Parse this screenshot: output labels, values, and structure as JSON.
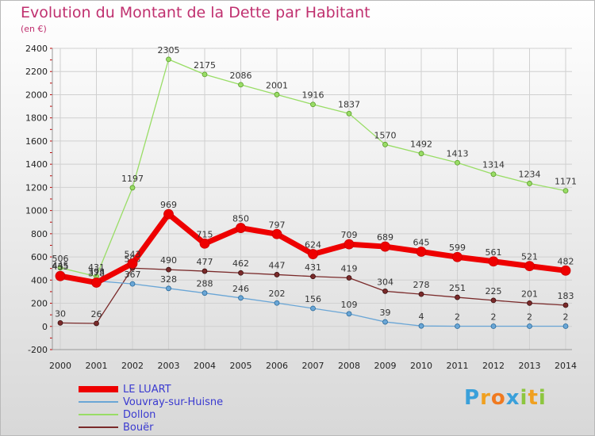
{
  "title": "Evolution du Montant de la Dette par Habitant",
  "subtitle": "(en €)",
  "brand": {
    "p": "P",
    "r": "r",
    "o": "o",
    "x": "x",
    "i1": "i",
    "t": "t",
    "i2": "i"
  },
  "chart_data": {
    "type": "line",
    "title": "Evolution du Montant de la Dette par Habitant",
    "subtitle": "(en €)",
    "xlabel": "",
    "ylabel": "",
    "ylim": [
      -200,
      2400
    ],
    "yticks": [
      -200,
      0,
      200,
      400,
      600,
      800,
      1000,
      1200,
      1400,
      1600,
      1800,
      2000,
      2200,
      2400
    ],
    "x": [
      "2000",
      "2001",
      "2002",
      "2003",
      "2004",
      "2005",
      "2006",
      "2007",
      "2008",
      "2009",
      "2010",
      "2011",
      "2012",
      "2013",
      "2014"
    ],
    "grid": true,
    "legend_position": "bottom-left",
    "series": [
      {
        "name": "LE LUART",
        "color": "#ee0000",
        "values": [
          435,
          378,
          543,
          969,
          715,
          850,
          797,
          624,
          709,
          689,
          645,
          599,
          561,
          521,
          482
        ]
      },
      {
        "name": "Vouvray-sur-Huisne",
        "color": "#6aa6d6",
        "values": [
          445,
          393,
          367,
          328,
          288,
          246,
          202,
          156,
          109,
          39,
          4,
          2,
          2,
          2,
          2
        ]
      },
      {
        "name": "Dollon",
        "color": "#99dd66",
        "values": [
          506,
          431,
          1197,
          2305,
          2175,
          2086,
          2001,
          1916,
          1837,
          1570,
          1492,
          1413,
          1314,
          1234,
          1171
        ]
      },
      {
        "name": "Bouër",
        "color": "#7a2a2a",
        "values": [
          30,
          26,
          503,
          490,
          477,
          462,
          447,
          431,
          419,
          304,
          278,
          251,
          225,
          201,
          183
        ]
      }
    ]
  }
}
